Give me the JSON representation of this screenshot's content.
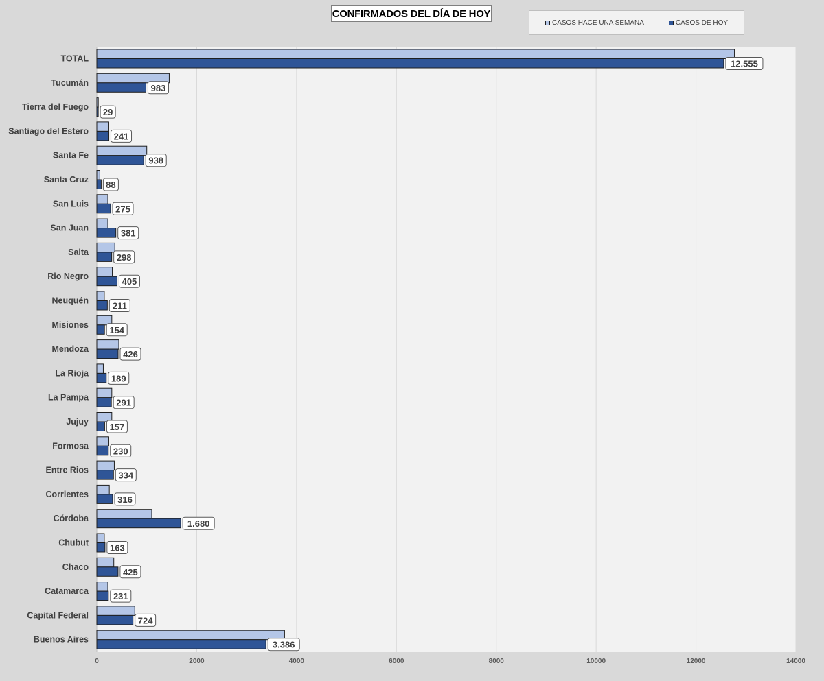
{
  "chart_data": {
    "type": "bar",
    "orientation": "horizontal",
    "title": "CONFIRMADOS DEL DÍA DE HOY",
    "categories": [
      "TOTAL",
      "Tucumán",
      "Tierra del Fuego",
      "Santiago del Estero",
      "Santa Fe",
      "Santa Cruz",
      "San Luis",
      "San Juan",
      "Salta",
      "Rio Negro",
      "Neuquén",
      "Misiones",
      "Mendoza",
      "La Rioja",
      "La Pampa",
      "Jujuy",
      "Formosa",
      "Entre Rios",
      "Corrientes",
      "Córdoba",
      "Chubut",
      "Chaco",
      "Catamarca",
      "Capital Federal",
      "Buenos Aires"
    ],
    "series": [
      {
        "name": "CASOS HACE UNA SEMANA",
        "color": "#b4c6e7",
        "values": [
          12770,
          1450,
          30,
          240,
          1000,
          60,
          220,
          220,
          360,
          310,
          150,
          300,
          440,
          130,
          300,
          300,
          240,
          350,
          250,
          1100,
          150,
          340,
          220,
          760,
          3760
        ]
      },
      {
        "name": "CASOS DE HOY",
        "color": "#2f5597",
        "values": [
          12555,
          983,
          29,
          241,
          938,
          88,
          275,
          381,
          298,
          405,
          211,
          154,
          426,
          189,
          291,
          157,
          230,
          334,
          316,
          1680,
          163,
          425,
          231,
          724,
          3386
        ],
        "labels": [
          "12.555",
          "983",
          "29",
          "241",
          "938",
          "88",
          "275",
          "381",
          "298",
          "405",
          "211",
          "154",
          "426",
          "189",
          "291",
          "157",
          "230",
          "334",
          "316",
          "1.680",
          "163",
          "425",
          "231",
          "724",
          "3.386"
        ]
      }
    ],
    "xlim": [
      0,
      14000
    ],
    "xticks": [
      0,
      2000,
      4000,
      6000,
      8000,
      10000,
      12000,
      14000
    ],
    "xtick_labels": [
      "0",
      "2000",
      "4000",
      "6000",
      "8000",
      "10000",
      "12000",
      "14000"
    ],
    "grid": true,
    "legend_position": "top-right"
  }
}
